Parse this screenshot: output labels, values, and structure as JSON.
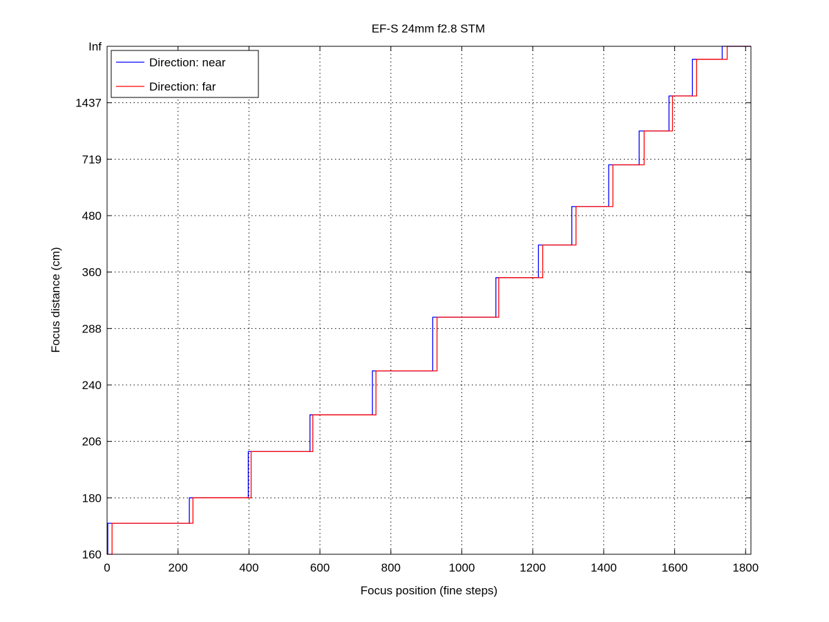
{
  "chart_data": {
    "type": "line",
    "title": "EF-S 24mm f2.8 STM",
    "xlabel": "Focus position (fine steps)",
    "ylabel": "Focus distance (cm)",
    "xlim": [
      0,
      1815
    ],
    "x_ticks": [
      0,
      200,
      400,
      600,
      800,
      1000,
      1200,
      1400,
      1600,
      1800
    ],
    "y_ticks": [
      "160",
      "180",
      "206",
      "240",
      "288",
      "360",
      "480",
      "719",
      "1437",
      "Inf"
    ],
    "y_axis_note": "categorical/reciprocal focus-distance scale; step values given as tick-level index (0 = 160, 9 = Inf)",
    "grid": true,
    "legend_position": "top-left",
    "series": [
      {
        "name": "Direction: near",
        "color": "#0000ff",
        "points": [
          [
            0,
            0
          ],
          [
            2,
            0
          ],
          [
            2,
            0.55
          ],
          [
            232,
            0.55
          ],
          [
            232,
            1
          ],
          [
            398,
            1
          ],
          [
            398,
            1.82
          ],
          [
            572,
            1.82
          ],
          [
            572,
            2.47
          ],
          [
            748,
            2.47
          ],
          [
            748,
            3.25
          ],
          [
            918,
            3.25
          ],
          [
            918,
            4.2
          ],
          [
            1096,
            4.2
          ],
          [
            1096,
            4.9
          ],
          [
            1216,
            4.9
          ],
          [
            1216,
            5.48
          ],
          [
            1310,
            5.48
          ],
          [
            1310,
            6.16
          ],
          [
            1414,
            6.16
          ],
          [
            1414,
            6.9
          ],
          [
            1500,
            6.9
          ],
          [
            1500,
            7.5
          ],
          [
            1584,
            7.5
          ],
          [
            1584,
            8.12
          ],
          [
            1650,
            8.12
          ],
          [
            1650,
            8.77
          ],
          [
            1734,
            8.77
          ],
          [
            1734,
            9
          ],
          [
            1815,
            9
          ]
        ]
      },
      {
        "name": "Direction: far",
        "color": "#ff0000",
        "points": [
          [
            0,
            0
          ],
          [
            14,
            0
          ],
          [
            14,
            0.55
          ],
          [
            242,
            0.55
          ],
          [
            242,
            1
          ],
          [
            406,
            1
          ],
          [
            406,
            1.82
          ],
          [
            580,
            1.82
          ],
          [
            580,
            2.47
          ],
          [
            758,
            2.47
          ],
          [
            758,
            3.25
          ],
          [
            930,
            3.25
          ],
          [
            930,
            4.2
          ],
          [
            1104,
            4.2
          ],
          [
            1104,
            4.9
          ],
          [
            1228,
            4.9
          ],
          [
            1228,
            5.48
          ],
          [
            1322,
            5.48
          ],
          [
            1322,
            6.16
          ],
          [
            1426,
            6.16
          ],
          [
            1426,
            6.9
          ],
          [
            1514,
            6.9
          ],
          [
            1514,
            7.5
          ],
          [
            1594,
            7.5
          ],
          [
            1594,
            8.12
          ],
          [
            1662,
            8.12
          ],
          [
            1662,
            8.77
          ],
          [
            1748,
            8.77
          ],
          [
            1748,
            9
          ],
          [
            1815,
            9
          ]
        ]
      }
    ]
  }
}
